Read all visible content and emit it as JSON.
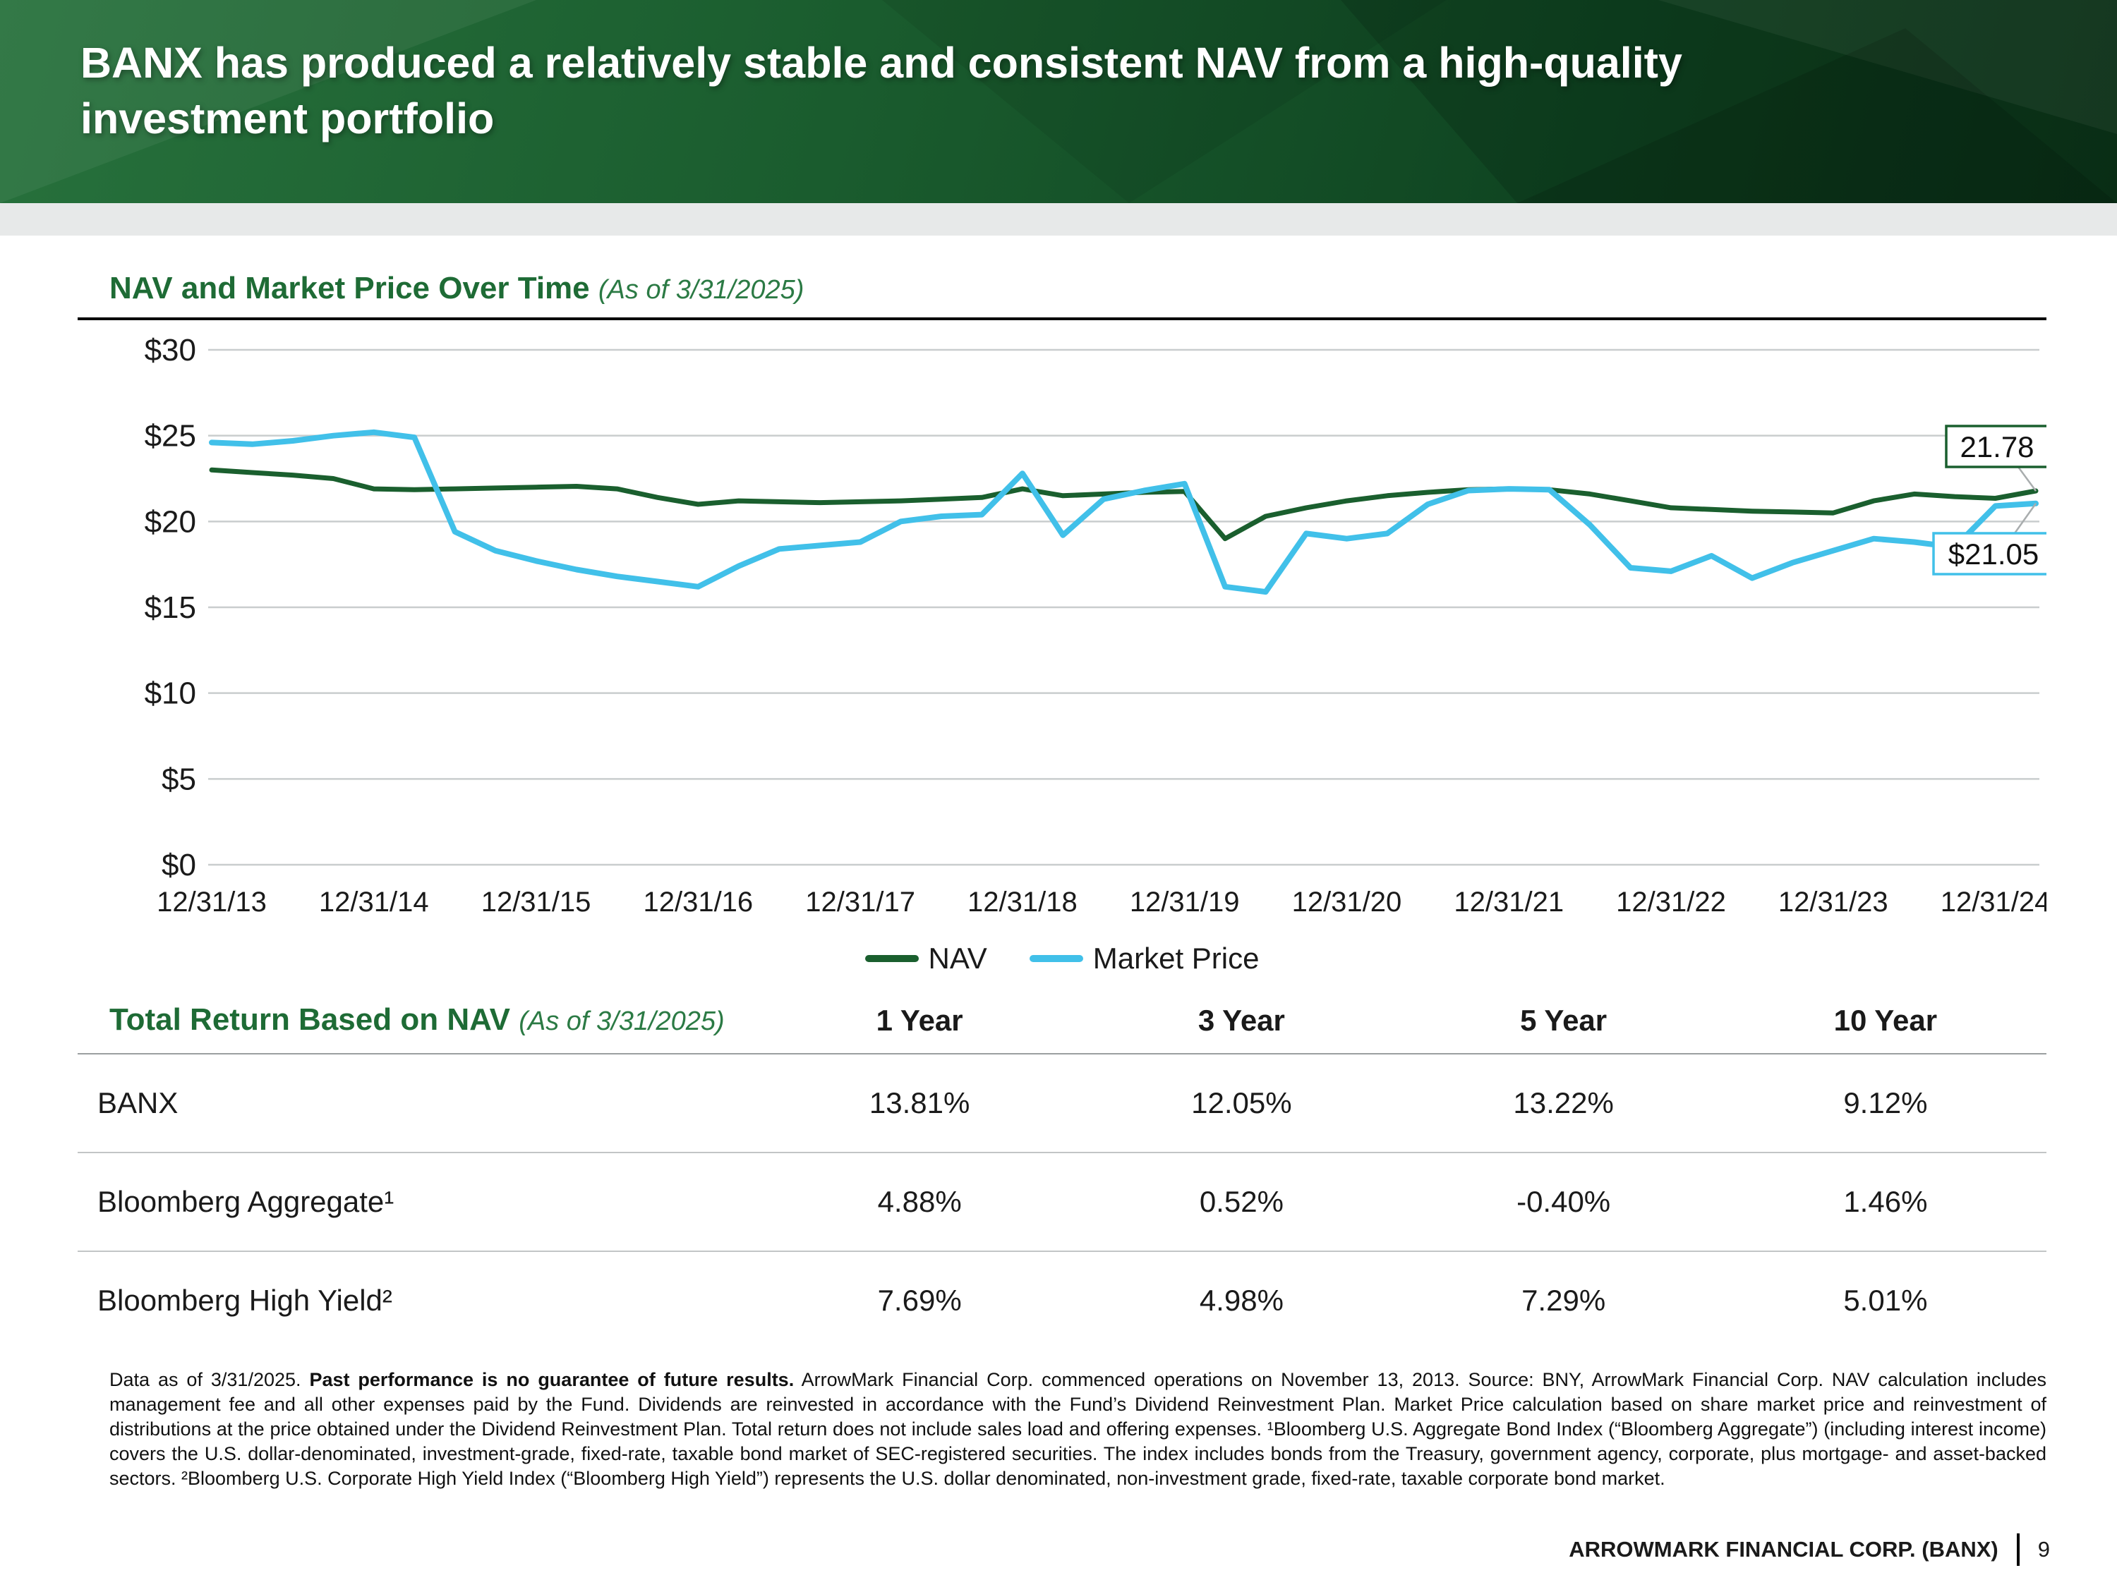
{
  "header": {
    "title_line1": "BANX has produced a relatively stable and consistent NAV from a high-quality",
    "title_line2": "investment portfolio"
  },
  "chart": {
    "title": "NAV and Market Price Over Time",
    "as_of": "(As of 3/31/2025)",
    "nav_end_label": "21.78",
    "price_end_label": "$21.05"
  },
  "chart_data": {
    "type": "line",
    "title": "NAV and Market Price Over Time (As of 3/31/2025)",
    "ylim": [
      0,
      30
    ],
    "grid": true,
    "legend_position": "bottom",
    "y_ticks": [
      {
        "value": 30,
        "label": "$30"
      },
      {
        "value": 25,
        "label": "$25"
      },
      {
        "value": 20,
        "label": "$20"
      },
      {
        "value": 15,
        "label": "$15"
      },
      {
        "value": 10,
        "label": "$10"
      },
      {
        "value": 5,
        "label": "$5"
      },
      {
        "value": 0,
        "label": "$0"
      }
    ],
    "x_tick_labels": [
      "12/31/13",
      "12/31/14",
      "12/31/15",
      "12/31/16",
      "12/31/17",
      "12/31/18",
      "12/31/19",
      "12/31/20",
      "12/31/21",
      "12/31/22",
      "12/31/23",
      "12/31/24"
    ],
    "x_frequency": "quarterly",
    "x_end": "3/31/25",
    "series": [
      {
        "key": "nav",
        "name": "NAV",
        "color": "#1a5f2e",
        "width": 7,
        "values": [
          23.0,
          22.85,
          22.7,
          22.5,
          21.9,
          21.85,
          21.9,
          21.95,
          22.0,
          22.05,
          21.9,
          21.4,
          21.0,
          21.2,
          21.15,
          21.1,
          21.15,
          21.2,
          21.3,
          21.4,
          21.9,
          21.5,
          21.6,
          21.7,
          21.75,
          19.0,
          20.3,
          20.8,
          21.2,
          21.5,
          21.7,
          21.85,
          21.9,
          21.85,
          21.6,
          21.2,
          20.8,
          20.7,
          20.6,
          20.55,
          20.5,
          21.2,
          21.6,
          21.45,
          21.35,
          21.78
        ]
      },
      {
        "key": "market-price",
        "name": "Market Price",
        "color": "#41c0e9",
        "width": 8,
        "values": [
          24.6,
          24.5,
          24.7,
          25.0,
          25.2,
          24.9,
          19.4,
          18.3,
          17.7,
          17.2,
          16.8,
          16.5,
          16.2,
          17.4,
          18.4,
          18.6,
          18.8,
          20.0,
          20.3,
          20.4,
          22.8,
          19.2,
          21.3,
          21.8,
          22.2,
          16.2,
          15.9,
          19.3,
          19.0,
          19.3,
          21.0,
          21.8,
          21.9,
          21.85,
          19.8,
          17.3,
          17.1,
          18.0,
          16.7,
          17.6,
          18.3,
          19.0,
          18.8,
          18.5,
          20.9,
          21.05
        ]
      }
    ]
  },
  "table": {
    "title": "Total Return Based on NAV",
    "as_of": "(As of 3/31/2025)",
    "columns": [
      "1 Year",
      "3 Year",
      "5 Year",
      "10 Year"
    ],
    "rows": [
      {
        "label": "BANX",
        "values": [
          "13.81%",
          "12.05%",
          "13.22%",
          "9.12%"
        ]
      },
      {
        "label": "Bloomberg Aggregate¹",
        "values": [
          "4.88%",
          "0.52%",
          "-0.40%",
          "1.46%"
        ]
      },
      {
        "label": "Bloomberg High Yield²",
        "values": [
          "7.69%",
          "4.98%",
          "7.29%",
          "5.01%"
        ]
      }
    ]
  },
  "footnote": {
    "segments": [
      {
        "text": "Data as of 3/31/2025. ",
        "bold": false
      },
      {
        "text": "Past performance is no guarantee of future results.",
        "bold": true
      },
      {
        "text": " ArrowMark Financial Corp. commenced operations on November 13, 2013. Source: BNY, ArrowMark Financial Corp. NAV calculation includes management fee and all other expenses paid by the Fund. Dividends are reinvested in accordance with the Fund’s Dividend Reinvestment Plan. Market Price calculation based on share market price and reinvestment of distributions at the price obtained under the Dividend Reinvestment Plan. Total return does not include sales load and offering expenses. ¹Bloomberg U.S. Aggregate Bond Index (“Bloomberg Aggregate”) (including interest income) covers the U.S. dollar-denominated, investment-grade, fixed-rate, taxable bond market of SEC-registered securities. The index includes bonds from the Treasury, government agency, corporate, plus mortgage- and asset-backed sectors. ²Bloomberg U.S. Corporate High Yield Index (“Bloomberg High Yield”) represents the U.S. dollar denominated, non-investment grade, fixed-rate, taxable corporate bond market.",
        "bold": false
      }
    ]
  },
  "footer": {
    "company": "ARROWMARK FINANCIAL CORP. (BANX)",
    "page": "9"
  }
}
